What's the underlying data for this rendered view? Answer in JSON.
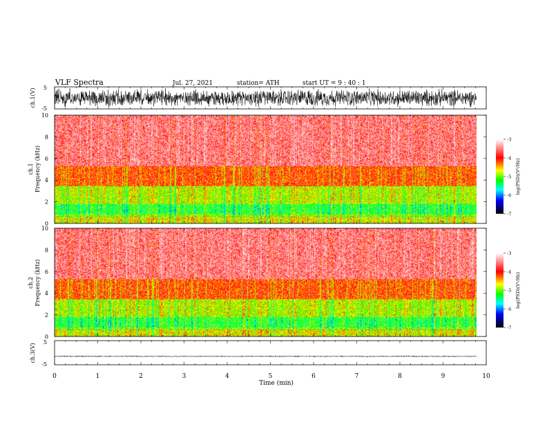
{
  "header": {
    "title": "VLF  Spectra",
    "date": "Jul.  27, 2021",
    "station": "station= ATH",
    "start": "start  UT  =   9  : 40 : 1"
  },
  "chart_data": [
    {
      "type": "line",
      "panel": "ch1-waveform",
      "ylabel": "ch.1(V)",
      "ylim": [
        -5,
        5
      ],
      "yticks": [
        "5",
        "-5"
      ],
      "series": [
        {
          "color": "#000000",
          "amplitude_V": 4.5
        }
      ]
    },
    {
      "type": "heatmap",
      "panel": "ch1-spectrogram",
      "ylabel_line1": "ch.1",
      "ylabel_line2": "Frequency  (kHz)",
      "ylim": [
        0,
        10
      ],
      "yticks": [
        "0",
        "2",
        "4",
        "6",
        "8",
        "10"
      ],
      "xlim": [
        0,
        9.83
      ],
      "frequency_bands_kHz": [
        {
          "from": 0,
          "to": 0.7,
          "dominant": "mixed"
        },
        {
          "from": 0.7,
          "to": 2.0,
          "dominant": "green-cyan"
        },
        {
          "from": 2.0,
          "to": 3.5,
          "dominant": "yellow-green"
        },
        {
          "from": 3.5,
          "to": 5.3,
          "dominant": "red-orange"
        },
        {
          "from": 5.3,
          "to": 10,
          "dominant": "red-white"
        }
      ],
      "colorbar": {
        "label": "log(PSD)(V²/Hz)",
        "range": [
          -7,
          -3
        ],
        "ticks": [
          "-3",
          "-4",
          "-5",
          "-6",
          "-7"
        ],
        "colors": [
          "#ffffff",
          "#ff0000",
          "#ffff00",
          "#00ff00",
          "#00ffff",
          "#0000ff",
          "#000000"
        ]
      }
    },
    {
      "type": "heatmap",
      "panel": "ch2-spectrogram",
      "ylabel_line1": "ch.2",
      "ylabel_line2": "Frequency  (kHz)",
      "ylim": [
        0,
        10
      ],
      "yticks": [
        "0",
        "2",
        "4",
        "6",
        "8",
        "10"
      ],
      "xlim": [
        0,
        9.83
      ],
      "frequency_bands_kHz": [
        {
          "from": 0,
          "to": 0.7,
          "dominant": "mixed"
        },
        {
          "from": 0.7,
          "to": 2.0,
          "dominant": "green-cyan"
        },
        {
          "from": 2.0,
          "to": 3.5,
          "dominant": "yellow-green"
        },
        {
          "from": 3.5,
          "to": 5.3,
          "dominant": "red-orange"
        },
        {
          "from": 5.3,
          "to": 10,
          "dominant": "red-white"
        }
      ],
      "colorbar": {
        "label": "log(PSD)(V²/Hz)",
        "range": [
          -7,
          -3
        ],
        "ticks": [
          "-3",
          "-4",
          "-5",
          "-6",
          "-7"
        ],
        "colors": [
          "#ffffff",
          "#ff0000",
          "#ffff00",
          "#00ff00",
          "#00ffff",
          "#0000ff",
          "#000000"
        ]
      }
    },
    {
      "type": "line",
      "panel": "ch3-waveform",
      "ylabel": "ch.3(V)",
      "ylim": [
        -5,
        5
      ],
      "yticks": [
        "5",
        "0",
        "-5"
      ],
      "series": [
        {
          "color": "#000000",
          "offset_V": -1.5,
          "amplitude_V": 0.3
        }
      ]
    }
  ],
  "x_axis": {
    "label": "Time  (min)",
    "range": [
      0,
      10
    ],
    "ticks": [
      "0",
      "1",
      "2",
      "3",
      "4",
      "5",
      "6",
      "7",
      "8",
      "9",
      "10"
    ]
  }
}
